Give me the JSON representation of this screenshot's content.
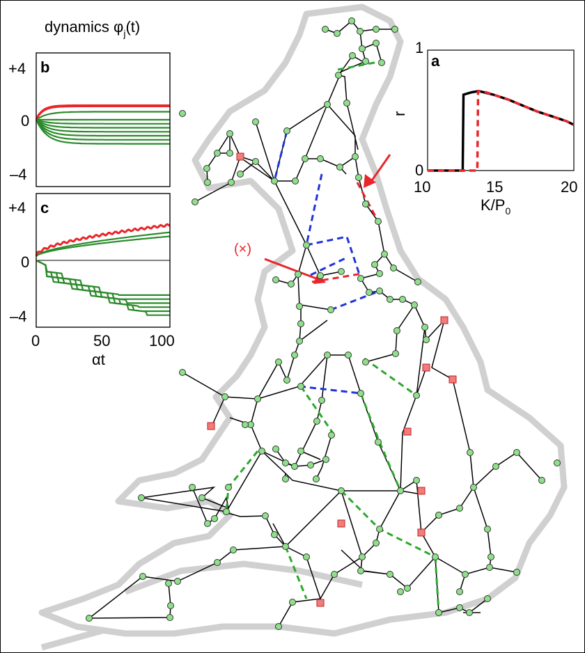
{
  "chart_data": [
    {
      "panel": "a",
      "type": "line",
      "xlabel_main": "K/P",
      "xlabel_sub": "0",
      "ylabel": "r",
      "xlim": [
        10,
        20
      ],
      "ylim": [
        0,
        1
      ],
      "xticks": [
        "10",
        "15",
        "20"
      ],
      "yticks": [
        "0",
        "1"
      ],
      "series": [
        {
          "color": "#000000",
          "style": "solid",
          "x": [
            10,
            12.4,
            12.45,
            13.0,
            13.5,
            14.5,
            15.5,
            16.5,
            17.5,
            18.5,
            19.5,
            20
          ],
          "y": [
            0,
            0,
            0.63,
            0.65,
            0.66,
            0.63,
            0.59,
            0.54,
            0.49,
            0.45,
            0.41,
            0.38
          ]
        },
        {
          "color": "#e8262b",
          "style": "dashed",
          "x": [
            10,
            13.4,
            13.45,
            14.0,
            14.5,
            15.5,
            16.5,
            17.5,
            18.5,
            19.5,
            20
          ],
          "y": [
            0,
            0,
            0.66,
            0.65,
            0.63,
            0.59,
            0.54,
            0.49,
            0.45,
            0.41,
            0.38
          ]
        }
      ]
    },
    {
      "panel": "b",
      "type": "line",
      "title": "dynamics φ",
      "title_sub": "j",
      "title_tail": "(t)",
      "xlim": [
        0,
        100
      ],
      "ylim": [
        -5,
        5
      ],
      "yticks": [
        "+4",
        "0",
        "–4"
      ],
      "bands": [
        {
          "color": "#e8262b",
          "values": [
            1.0,
            1.0
          ]
        },
        {
          "color": "#2a8a2a",
          "values": [
            0.6,
            0.0,
            -0.3,
            -0.6,
            -0.9,
            -1.2,
            -1.5,
            -1.8
          ]
        }
      ]
    },
    {
      "panel": "c",
      "type": "line",
      "xlabel": "αt",
      "xlim": [
        0,
        100
      ],
      "ylim": [
        -5,
        5
      ],
      "xticks": [
        "0",
        "50",
        "100"
      ],
      "yticks": [
        "+4",
        "0",
        "–4"
      ],
      "bands": [
        {
          "color": "#e8262b",
          "end": 2.3
        },
        {
          "color": "#2a8a2a",
          "end_values": [
            1.8,
            1.5,
            -2.6,
            -2.9,
            -3.2,
            -3.5,
            -3.8,
            -4.1
          ]
        }
      ]
    }
  ],
  "network": {
    "colors": {
      "generator": "#f07c7c",
      "consumer": "#8fe08a",
      "line": "#000000",
      "blue_dash": "#1f33d9",
      "green_dash": "#2aa82a",
      "red_dash": "#e8262b",
      "coast": "#d0d0d0"
    },
    "annotation_label": "(×)"
  }
}
